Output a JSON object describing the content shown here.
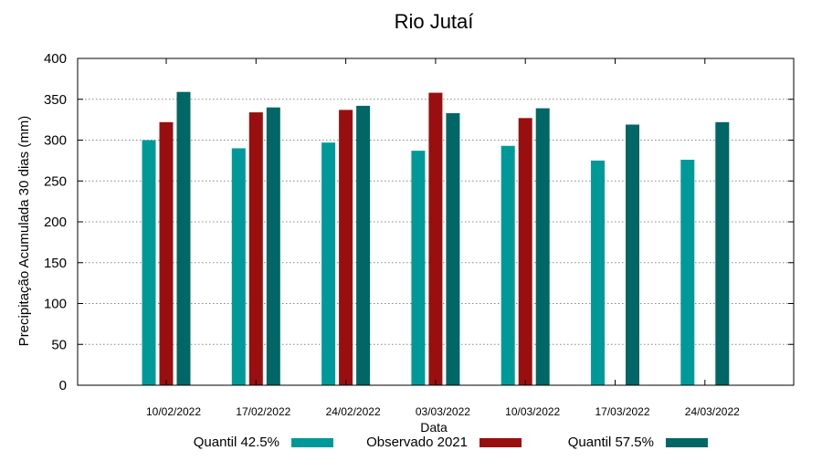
{
  "chart_data": {
    "type": "bar",
    "title": "Rio Jutaí",
    "xlabel": "Data",
    "ylabel": "Precipitação Acumulada 30 dias (mm)",
    "ylim": [
      0,
      400
    ],
    "yticks": [
      0,
      50,
      100,
      150,
      200,
      250,
      300,
      350,
      400
    ],
    "grid": true,
    "legend_position": "bottom",
    "categories": [
      "10/02/2022",
      "17/02/2022",
      "24/02/2022",
      "03/03/2022",
      "10/03/2022",
      "17/03/2022",
      "24/03/2022"
    ],
    "series": [
      {
        "name": "Quantil 42.5%",
        "color": "#009999",
        "values": [
          300,
          290,
          297,
          287,
          293,
          275,
          276
        ]
      },
      {
        "name": "Observado 2021",
        "color": "#990f0f",
        "values": [
          322,
          334,
          337,
          358,
          327,
          null,
          null
        ]
      },
      {
        "name": "Quantil 57.5%",
        "color": "#006666",
        "values": [
          359,
          340,
          342,
          333,
          339,
          319,
          322
        ]
      }
    ]
  }
}
